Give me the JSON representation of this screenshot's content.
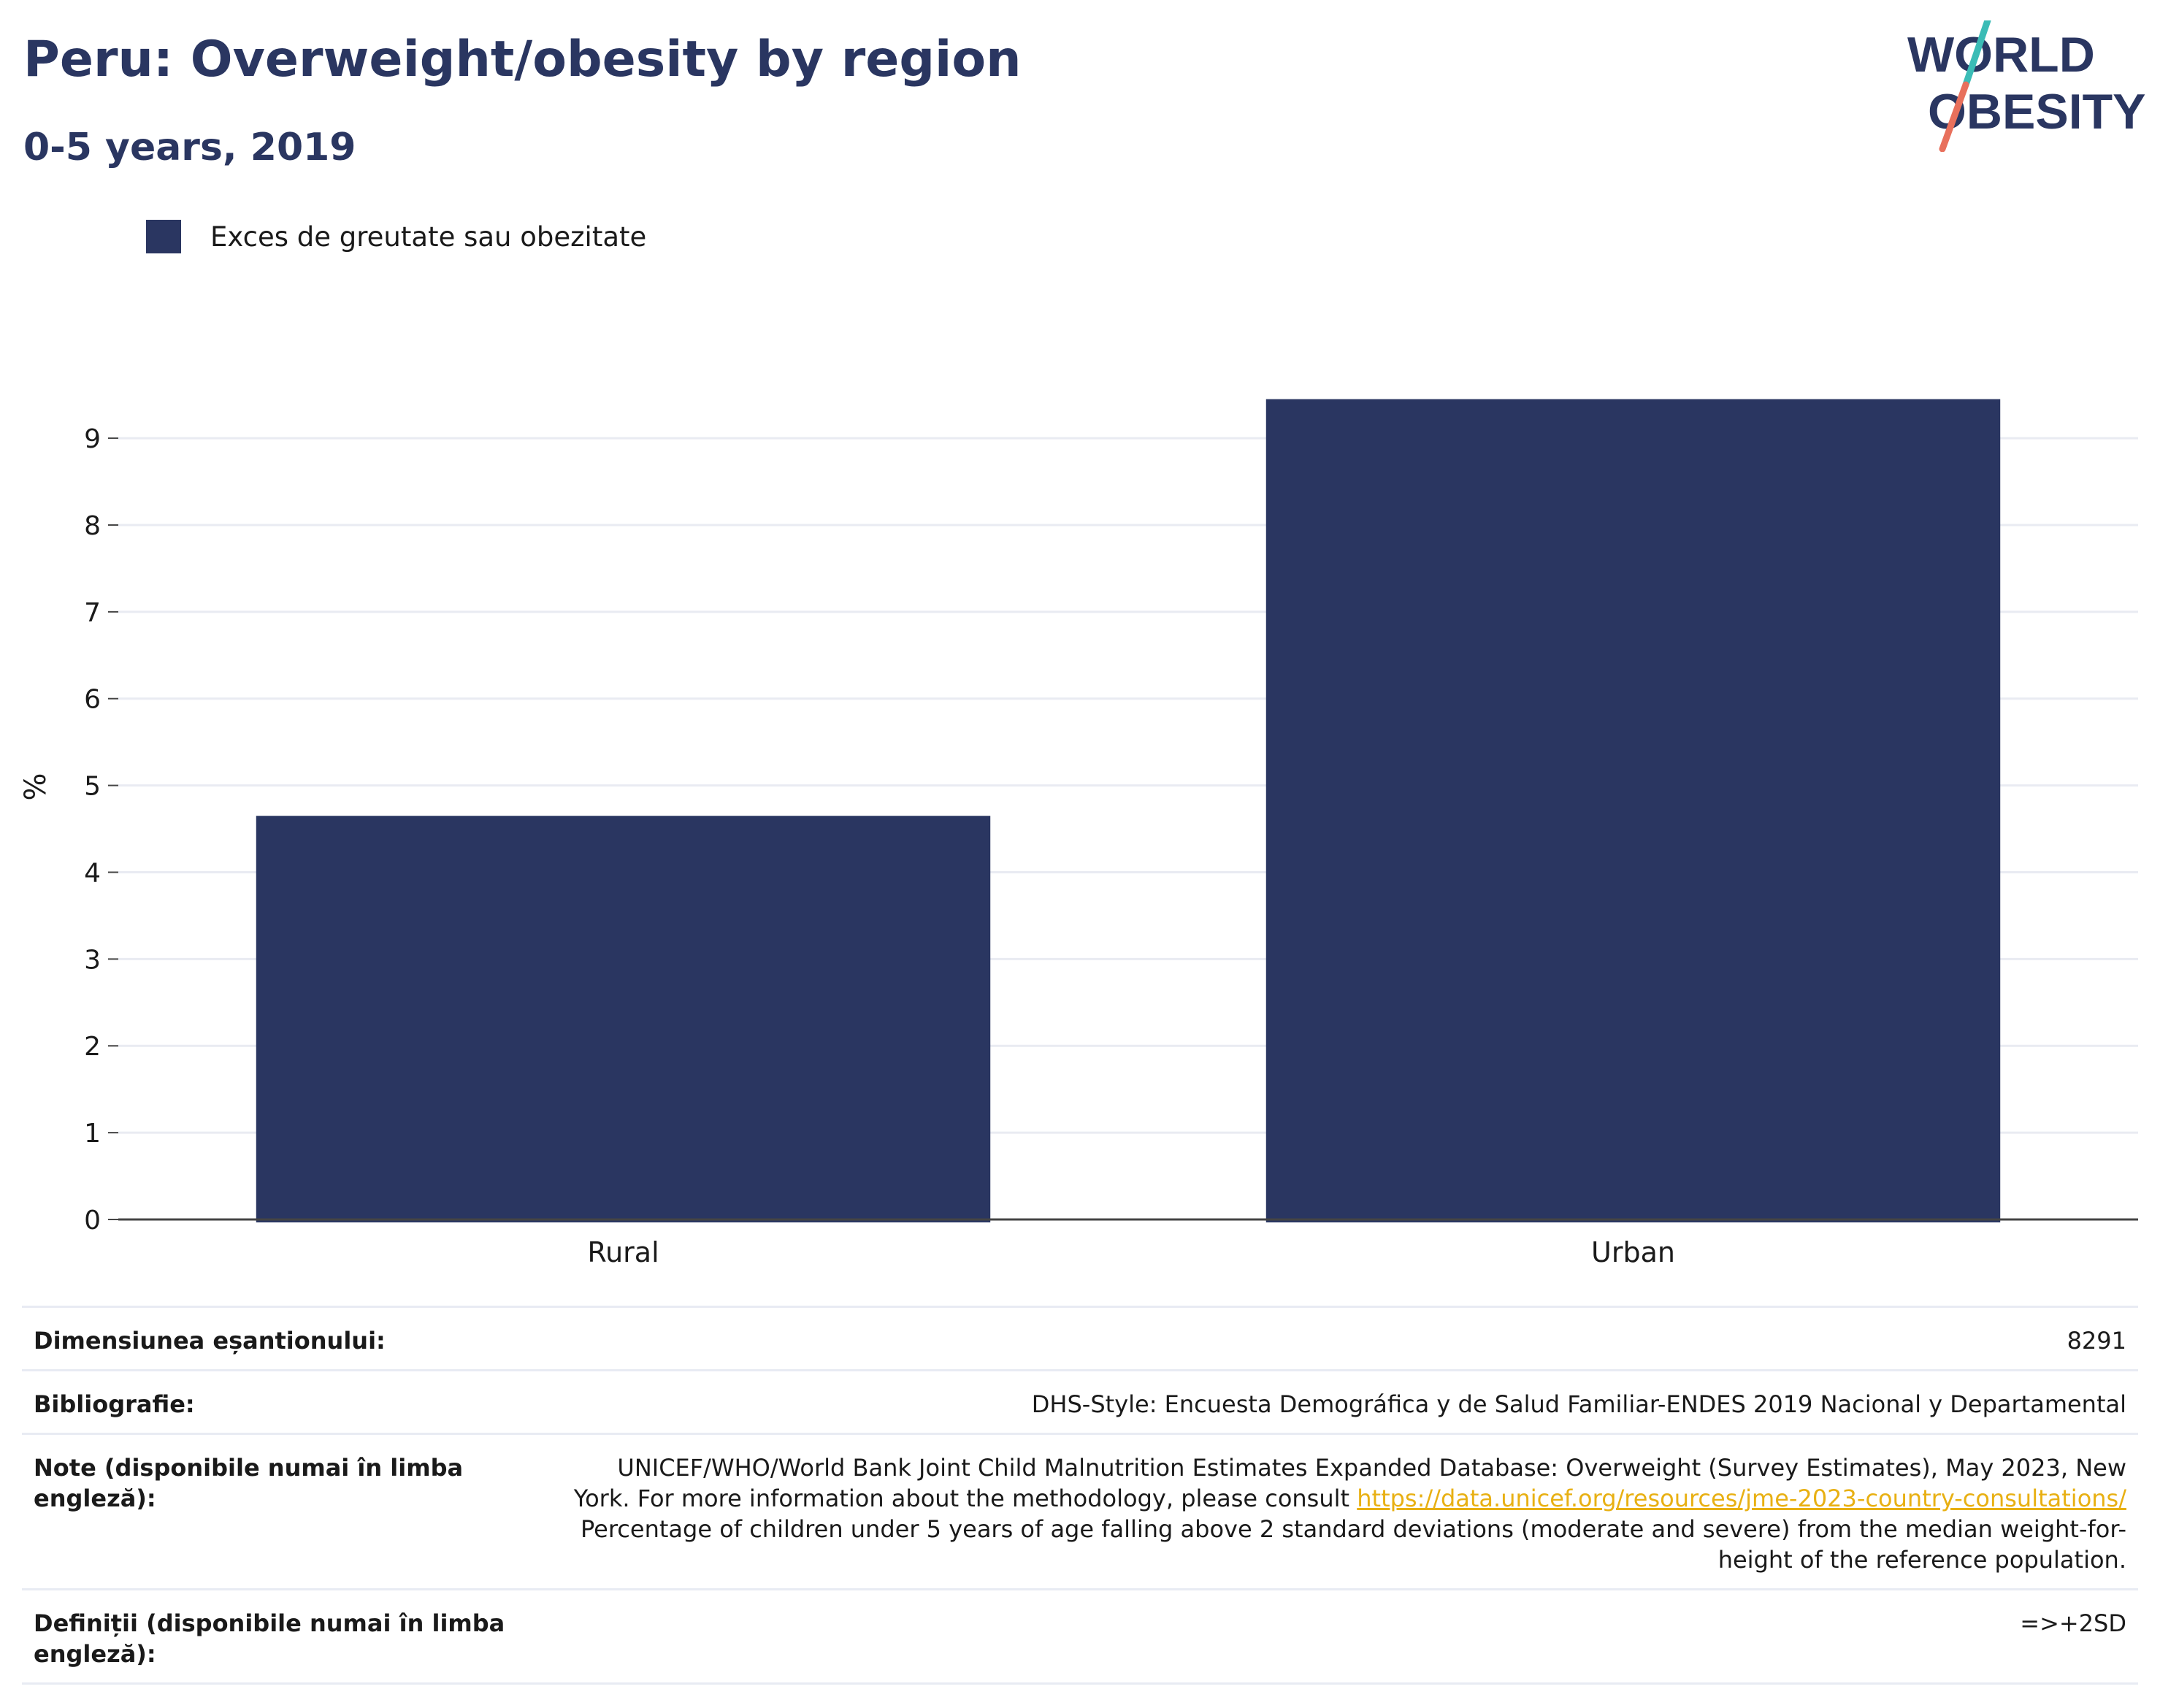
{
  "header": {
    "title": "Peru: Overweight/obesity by region",
    "subtitle": "0-5 years, 2019"
  },
  "logo": {
    "line1": "WORLD",
    "line2": "OBESITY",
    "colors": {
      "text": "#2a3661",
      "slash_top": "#3bbcb6",
      "slash_bottom": "#e8705c"
    }
  },
  "legend": {
    "label": "Exces de greutate sau obezitate",
    "color": "#2a3661"
  },
  "chart_data": {
    "type": "bar",
    "categories": [
      "Rural",
      "Urban"
    ],
    "series": [
      {
        "name": "Exces de greutate sau obezitate",
        "values": [
          4.65,
          9.45
        ],
        "color": "#2a3661"
      }
    ],
    "ylabel": "%",
    "xlabel": "",
    "ylim": [
      0,
      9.8
    ],
    "yticks": [
      0,
      1,
      2,
      3,
      4,
      5,
      6,
      7,
      8,
      9
    ],
    "grid": true,
    "legend_position": "top-left"
  },
  "info": {
    "sample_size_label": "Dimensiunea eșantionului:",
    "sample_size_value": "8291",
    "bibliography_label": "Bibliografie:",
    "bibliography_value": "DHS-Style: Encuesta Demográfica y de Salud Familiar-ENDES 2019 Nacional y Departamental",
    "notes_label": "Note (disponibile numai în limba engleză):",
    "notes_line1": "UNICEF/WHO/World Bank Joint Child Malnutrition Estimates Expanded Database: Overweight (Survey Estimates), May 2023, New",
    "notes_line2": "York. For more information about the methodology, please consult",
    "notes_link": "https://data.unicef.org/resources/jme-2023-country-consultations/",
    "notes_line3": "Percentage of children under 5 years of age falling above 2 standard deviations (moderate and severe) from the median weight-for-",
    "notes_line4": "height of the reference population.",
    "definitions_label": "Definiții (disponibile numai în limba engleză):",
    "definitions_value": "=>+2SD"
  }
}
